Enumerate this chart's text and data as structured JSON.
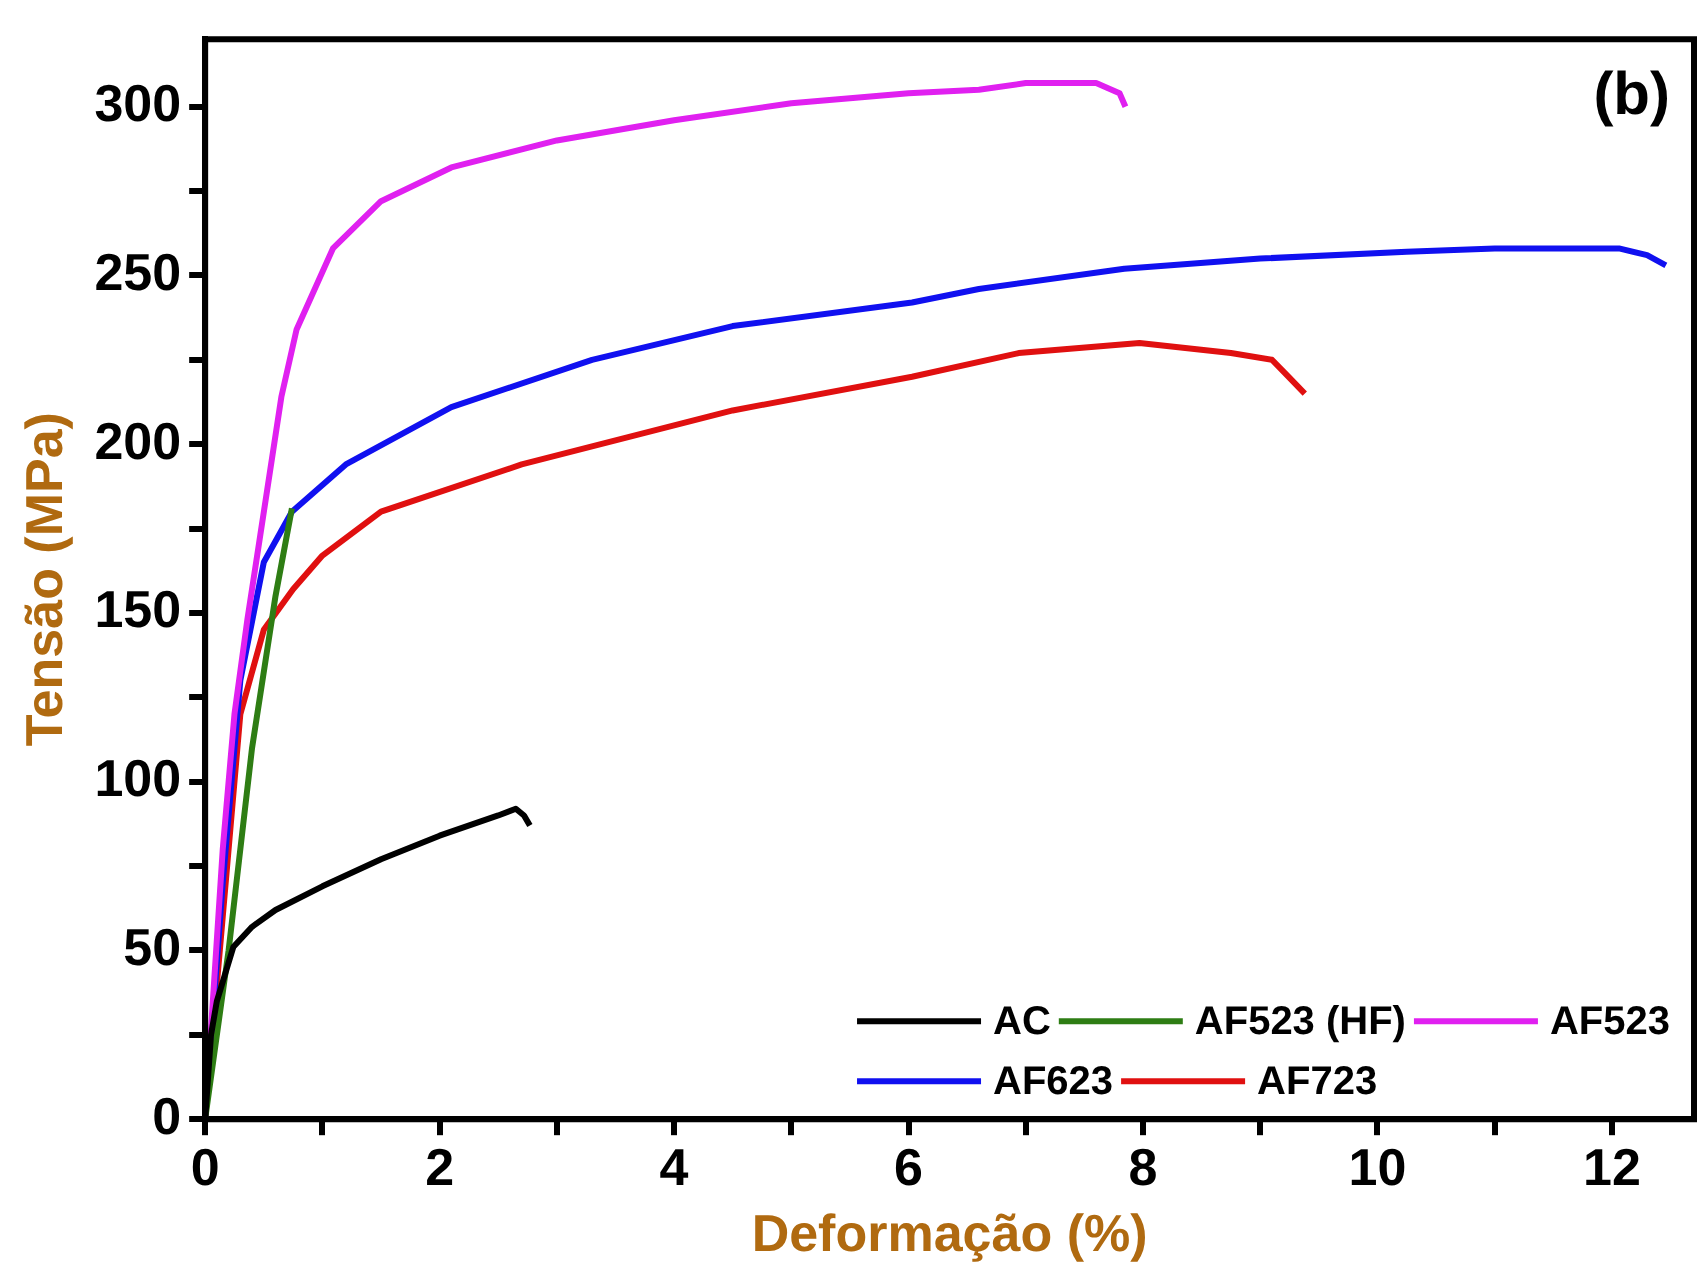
{
  "chart_data": {
    "type": "line",
    "xlabel": "Deformação (%)",
    "ylabel": "Tensão (MPa)",
    "annotations": [
      "(b)"
    ],
    "xlim": [
      0,
      12.7
    ],
    "ylim": [
      0,
      320
    ],
    "xticks": [
      0,
      {
        "value": 1,
        "label": null
      },
      2,
      {
        "value": 3,
        "label": null
      },
      4,
      {
        "value": 5,
        "label": null
      },
      6,
      {
        "value": 7,
        "label": null
      },
      8,
      {
        "value": 9,
        "label": null
      },
      10,
      {
        "value": 11,
        "label": null
      },
      12
    ],
    "yticks": [
      0,
      {
        "value": 25,
        "label": null
      },
      50,
      {
        "value": 75,
        "label": null
      },
      100,
      {
        "value": 125,
        "label": null
      },
      150,
      {
        "value": 175,
        "label": null
      },
      200,
      {
        "value": 225,
        "label": null
      },
      250,
      {
        "value": 275,
        "label": null
      },
      300
    ],
    "grid": false,
    "legend": "bottom right",
    "series": [
      {
        "name": "AC",
        "color": "#000000",
        "x": [
          0,
          0.05,
          0.1,
          0.24,
          0.4,
          0.6,
          1,
          1.5,
          2,
          2.5,
          2.65,
          2.72,
          2.77
        ],
        "values": [
          0,
          25,
          35,
          51,
          57,
          62,
          69,
          77,
          84,
          90,
          92,
          90,
          87
        ]
      },
      {
        "name": "AF523 (HF)",
        "color": "#2e7d14",
        "x": [
          0,
          0.2,
          0.4,
          0.6,
          0.74
        ],
        "values": [
          0,
          50,
          110,
          155,
          181
        ]
      },
      {
        "name": "AF523",
        "color": "#e020f0",
        "x": [
          0,
          0.15,
          0.25,
          0.36,
          0.47,
          0.65,
          0.78,
          1.09,
          1.5,
          2.1,
          3,
          4,
          5,
          6,
          6.6,
          7,
          7.6,
          7.8,
          7.85
        ],
        "values": [
          0,
          80,
          120,
          148,
          173,
          214,
          234,
          258,
          272,
          282,
          290,
          296,
          301,
          304,
          305,
          307,
          307,
          304,
          300
        ]
      },
      {
        "name": "AF623",
        "color": "#1010f0",
        "x": [
          0,
          0.15,
          0.3,
          0.5,
          0.74,
          1.2,
          2.1,
          3.3,
          4.5,
          6.03,
          6.6,
          7.84,
          9,
          10.25,
          11,
          12.06,
          12.3,
          12.46
        ],
        "values": [
          0,
          70,
          130,
          165,
          180,
          194,
          211,
          225,
          235,
          242,
          246,
          252,
          255,
          257,
          258,
          258,
          256,
          253
        ]
      },
      {
        "name": "AF723",
        "color": "#e01010",
        "x": [
          0,
          0.15,
          0.3,
          0.5,
          0.75,
          1,
          1.5,
          2.7,
          4.5,
          6.03,
          6.94,
          7.97,
          8.75,
          9.1,
          9.24,
          9.38
        ],
        "values": [
          0,
          60,
          120,
          145,
          157,
          167,
          180,
          194,
          210,
          220,
          227,
          230,
          227,
          225,
          220,
          215
        ]
      }
    ]
  }
}
